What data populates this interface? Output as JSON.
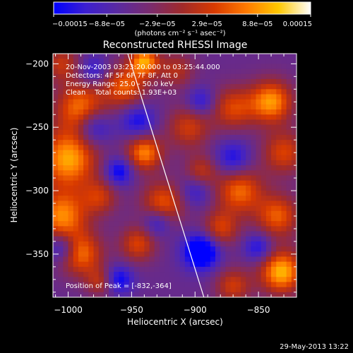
{
  "chart_data": {
    "type": "heatmap",
    "title": "Reconstructed RHESSI Image",
    "xlabel": "Heliocentric X (arcsec)",
    "ylabel": "Heliocentric Y (arcsec)",
    "xlim": [
      -1012,
      -820
    ],
    "ylim": [
      -384,
      -192
    ],
    "x_ticks": [
      -1000,
      -950,
      -900,
      -850
    ],
    "x_tick_labels": [
      "−1000",
      "−950",
      "−900",
      "−850"
    ],
    "y_ticks": [
      -200,
      -250,
      -300,
      -350
    ],
    "y_tick_labels": [
      "−200",
      "−250",
      "−300",
      "−350"
    ],
    "colorbar": {
      "min": -0.00015,
      "max": 0.00015,
      "tick_values": [
        -0.00015,
        -8.8e-05,
        -2.9e-05,
        2.9e-05,
        8.8e-05,
        0.00015
      ],
      "tick_labels": [
        "−0.00015",
        "−8.8e−05",
        "−2.9e−05",
        "2.9e−05",
        "8.8e−05",
        "0.00015"
      ],
      "unit_label": "(photons cm⁻² s⁻¹ asec⁻²)",
      "colors": [
        "#0000ff",
        "#3c1fd0",
        "#5a2aa0",
        "#7a2b6e",
        "#a02a2a",
        "#d83a00",
        "#ff7a00",
        "#ffc800",
        "#ffffff"
      ]
    },
    "annotations": [
      "20-Nov-2003 03:23:20.000 to 03:25:44.000",
      "Detectors: 4F 5F 6F 7F 8F, Att 0",
      "Energy Range: 25.0 - 50.0 keV",
      "Clean    Total counts: 1.93E+03"
    ],
    "peak_label": "Position of Peak = [-832,-364]",
    "peak": [
      -832,
      -364
    ],
    "limb_line": [
      [
        -953,
        -192
      ],
      [
        -893,
        -384
      ]
    ],
    "grid": false,
    "blobs": [
      {
        "x": -1005,
        "y": -200,
        "s": 10,
        "a": 0.5
      },
      {
        "x": -990,
        "y": -235,
        "s": 14,
        "a": 0.8
      },
      {
        "x": -955,
        "y": -218,
        "s": 12,
        "a": 0.7
      },
      {
        "x": -940,
        "y": -198,
        "s": 8,
        "a": 0.9
      },
      {
        "x": -915,
        "y": -205,
        "s": 10,
        "a": 0.45
      },
      {
        "x": -870,
        "y": -235,
        "s": 12,
        "a": 0.6
      },
      {
        "x": -840,
        "y": -230,
        "s": 12,
        "a": 0.9
      },
      {
        "x": -905,
        "y": -250,
        "s": 12,
        "a": 0.55
      },
      {
        "x": -1000,
        "y": -275,
        "s": 16,
        "a": 0.95
      },
      {
        "x": -940,
        "y": -270,
        "s": 10,
        "a": 0.85
      },
      {
        "x": -830,
        "y": -270,
        "s": 12,
        "a": 0.6
      },
      {
        "x": -895,
        "y": -285,
        "s": 9,
        "a": 0.5
      },
      {
        "x": -1005,
        "y": -320,
        "s": 14,
        "a": 0.85
      },
      {
        "x": -975,
        "y": -305,
        "s": 10,
        "a": 0.5
      },
      {
        "x": -925,
        "y": -310,
        "s": 12,
        "a": 0.7
      },
      {
        "x": -865,
        "y": -300,
        "s": 13,
        "a": 0.75
      },
      {
        "x": -835,
        "y": -320,
        "s": 12,
        "a": 0.7
      },
      {
        "x": -990,
        "y": -350,
        "s": 12,
        "a": 0.75
      },
      {
        "x": -945,
        "y": -342,
        "s": 10,
        "a": 0.6
      },
      {
        "x": -880,
        "y": -330,
        "s": 10,
        "a": 0.6
      },
      {
        "x": -870,
        "y": -375,
        "s": 10,
        "a": 0.55
      },
      {
        "x": -832,
        "y": -364,
        "s": 12,
        "a": 1.0
      },
      {
        "x": -975,
        "y": -372,
        "s": 8,
        "a": 0.45
      },
      {
        "x": -980,
        "y": -250,
        "s": 10,
        "a": -0.6
      },
      {
        "x": -945,
        "y": -245,
        "s": 10,
        "a": -0.5
      },
      {
        "x": -895,
        "y": -230,
        "s": 8,
        "a": -0.45
      },
      {
        "x": -870,
        "y": -275,
        "s": 10,
        "a": -0.5
      },
      {
        "x": -960,
        "y": -285,
        "s": 8,
        "a": -0.6
      },
      {
        "x": -930,
        "y": -325,
        "s": 8,
        "a": -0.5
      },
      {
        "x": -895,
        "y": -348,
        "s": 10,
        "a": -0.9
      },
      {
        "x": -850,
        "y": -345,
        "s": 8,
        "a": -0.5
      },
      {
        "x": -1005,
        "y": -345,
        "s": 8,
        "a": -0.55
      },
      {
        "x": -960,
        "y": -370,
        "s": 8,
        "a": -0.55
      },
      {
        "x": -900,
        "y": -300,
        "s": 9,
        "a": -0.4
      },
      {
        "x": -980,
        "y": -205,
        "s": 8,
        "a": -0.4
      }
    ]
  },
  "footer": {
    "date": "29-May-2013 13:22"
  }
}
